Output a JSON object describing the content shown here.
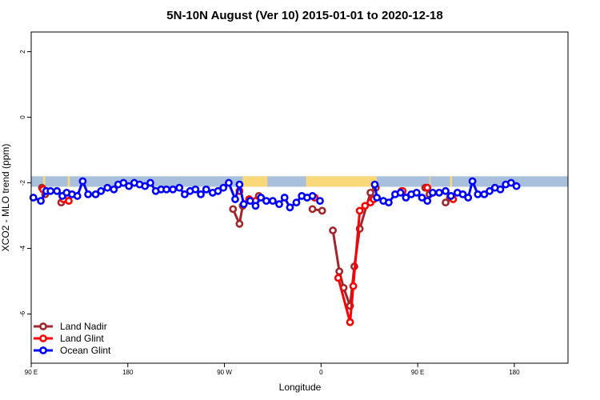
{
  "chart_data": {
    "type": "line",
    "title": "5N-10N August (Ver 10)   2015-01-01 to 2020-12-18",
    "xlabel": "Longitude",
    "ylabel": "XCO2 - MLO trend (ppm)",
    "xlim": [
      0,
      500
    ],
    "ylim": [
      -7.5,
      2.6
    ],
    "x_ticks": [
      {
        "value": 0,
        "label": "90 E"
      },
      {
        "value": 90,
        "label": "180"
      },
      {
        "value": 180,
        "label": "90 W"
      },
      {
        "value": 270,
        "label": "0"
      },
      {
        "value": 360,
        "label": "90 E"
      },
      {
        "value": 450,
        "label": "180"
      }
    ],
    "y_ticks": [
      {
        "value": 2,
        "label": "2"
      },
      {
        "value": 0,
        "label": "0"
      },
      {
        "value": -2,
        "label": "-2"
      },
      {
        "value": -4,
        "label": "-4"
      },
      {
        "value": -6,
        "label": "-6"
      }
    ],
    "land_band": {
      "y_from": -1.8,
      "y_to": -2.12,
      "sea_color": "#a8c0dc",
      "land_color": "#f8d878",
      "land_segments": [
        [
          11,
          13
        ],
        [
          34,
          36
        ],
        [
          197,
          220
        ],
        [
          256,
          322
        ],
        [
          371,
          372
        ],
        [
          390,
          392
        ]
      ]
    },
    "legend": {
      "position": "bottom-left",
      "entries": [
        {
          "name": "Land Nadir",
          "color": "#a0282d"
        },
        {
          "name": "Land Glint",
          "color": "#ff0000"
        },
        {
          "name": "Ocean Glint",
          "color": "#0000ff"
        }
      ]
    },
    "series": [
      {
        "name": "Land Nadir",
        "color": "#a0282d",
        "segments": [
          [
            [
              10,
              -2.15
            ],
            [
              13,
              -2.35
            ]
          ],
          [
            [
              28,
              -2.6
            ],
            [
              33,
              -2.4
            ]
          ],
          [
            [
              188,
              -2.8
            ],
            [
              194,
              -3.25
            ],
            [
              197,
              -2.7
            ],
            [
              203,
              -2.5
            ]
          ],
          [
            [
              212,
              -2.4
            ]
          ],
          [
            [
              262,
              -2.8
            ],
            [
              271,
              -2.85
            ]
          ],
          [
            [
              281,
              -3.45
            ],
            [
              287,
              -4.7
            ],
            [
              291,
              -5.2
            ],
            [
              297,
              -5.75
            ],
            [
              301,
              -4.55
            ],
            [
              306,
              -3.4
            ],
            [
              316,
              -2.3
            ],
            [
              321,
              -2.15
            ]
          ],
          [
            [
              345,
              -2.25
            ]
          ],
          [
            [
              367,
              -2.15
            ],
            [
              371,
              -2.35
            ]
          ],
          [
            [
              386,
              -2.6
            ],
            [
              390,
              -2.45
            ]
          ]
        ]
      },
      {
        "name": "Land Glint",
        "color": "#ff0000",
        "segments": [
          [
            [
              11,
              -2.2
            ]
          ],
          [
            [
              30,
              -2.5
            ],
            [
              35,
              -2.55
            ]
          ],
          [
            [
              194,
              -2.25
            ]
          ],
          [
            [
              203,
              -2.5
            ],
            [
              209,
              -2.55
            ]
          ],
          [
            [
              264,
              -2.45
            ]
          ],
          [
            [
              286,
              -4.9
            ],
            [
              297,
              -6.25
            ],
            [
              300,
              -5.15
            ],
            [
              306,
              -2.85
            ],
            [
              311,
              -2.7
            ],
            [
              316,
              -2.6
            ],
            [
              319,
              -2.5
            ]
          ],
          [
            [
              346,
              -2.25
            ]
          ],
          [
            [
              369,
              -2.15
            ]
          ],
          [
            [
              393,
              -2.5
            ]
          ]
        ]
      },
      {
        "name": "Ocean Glint",
        "color": "#0000ff",
        "segments": [
          [
            [
              2,
              -2.45
            ],
            [
              9,
              -2.55
            ],
            [
              14,
              -2.25
            ],
            [
              18,
              -2.25
            ],
            [
              24,
              -2.25
            ],
            [
              29,
              -2.4
            ],
            [
              33,
              -2.3
            ],
            [
              38,
              -2.35
            ],
            [
              43,
              -2.4
            ],
            [
              48,
              -1.95
            ],
            [
              53,
              -2.35
            ],
            [
              60,
              -2.35
            ],
            [
              65,
              -2.25
            ],
            [
              71,
              -2.15
            ],
            [
              77,
              -2.2
            ],
            [
              81,
              -2.05
            ],
            [
              86,
              -2.0
            ],
            [
              91,
              -2.1
            ],
            [
              96,
              -2.0
            ],
            [
              101,
              -2.05
            ],
            [
              106,
              -2.1
            ],
            [
              111,
              -2.0
            ],
            [
              116,
              -2.25
            ],
            [
              121,
              -2.2
            ],
            [
              126,
              -2.2
            ],
            [
              132,
              -2.2
            ],
            [
              138,
              -2.15
            ],
            [
              143,
              -2.35
            ],
            [
              148,
              -2.25
            ],
            [
              153,
              -2.2
            ],
            [
              158,
              -2.35
            ],
            [
              163,
              -2.2
            ],
            [
              169,
              -2.3
            ],
            [
              174,
              -2.25
            ],
            [
              179,
              -2.15
            ],
            [
              184,
              -2.0
            ],
            [
              190,
              -2.5
            ],
            [
              194,
              -2.05
            ],
            [
              198,
              -2.65
            ],
            [
              204,
              -2.55
            ],
            [
              209,
              -2.7
            ],
            [
              214,
              -2.45
            ],
            [
              219,
              -2.55
            ],
            [
              225,
              -2.55
            ],
            [
              231,
              -2.65
            ],
            [
              236,
              -2.45
            ],
            [
              241,
              -2.75
            ],
            [
              247,
              -2.6
            ],
            [
              252,
              -2.4
            ],
            [
              257,
              -2.45
            ],
            [
              262,
              -2.4
            ]
          ],
          [
            [
              269,
              -2.55
            ]
          ],
          [
            [
              320,
              -2.05
            ],
            [
              322,
              -2.45
            ],
            [
              328,
              -2.55
            ],
            [
              333,
              -2.6
            ],
            [
              339,
              -2.35
            ],
            [
              344,
              -2.3
            ],
            [
              349,
              -2.45
            ],
            [
              354,
              -2.35
            ],
            [
              359,
              -2.3
            ],
            [
              364,
              -2.45
            ],
            [
              369,
              -2.55
            ],
            [
              374,
              -2.3
            ],
            [
              380,
              -2.3
            ],
            [
              386,
              -2.25
            ],
            [
              391,
              -2.4
            ],
            [
              397,
              -2.3
            ],
            [
              402,
              -2.35
            ],
            [
              407,
              -2.45
            ],
            [
              411,
              -1.95
            ],
            [
              416,
              -2.35
            ],
            [
              422,
              -2.35
            ],
            [
              427,
              -2.25
            ],
            [
              432,
              -2.15
            ],
            [
              437,
              -2.2
            ],
            [
              442,
              -2.05
            ],
            [
              447,
              -2.0
            ],
            [
              452,
              -2.1
            ]
          ]
        ]
      }
    ]
  }
}
